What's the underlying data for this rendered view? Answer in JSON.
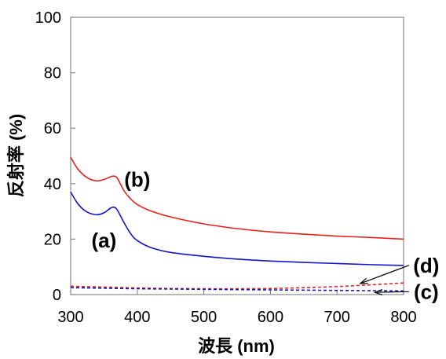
{
  "chart_data": {
    "type": "line",
    "xlabel": "波長 (nm)",
    "ylabel": "反射率 (%)",
    "xlim": [
      300,
      800
    ],
    "ylim": [
      0,
      100
    ],
    "x_ticks": [
      300,
      400,
      500,
      600,
      700,
      800
    ],
    "y_ticks": [
      0,
      20,
      40,
      60,
      80,
      100
    ],
    "grid": false,
    "legend": "none",
    "series": [
      {
        "name": "(b)",
        "color": "#e8211b",
        "style": "solid",
        "x": [
          300,
          310,
          320,
          330,
          340,
          350,
          360,
          365,
          370,
          380,
          390,
          400,
          420,
          450,
          500,
          550,
          600,
          650,
          700,
          750,
          800
        ],
        "y": [
          49.5,
          45.5,
          43.0,
          41.5,
          41.0,
          41.5,
          42.5,
          42.7,
          42.0,
          37.5,
          34.5,
          32.5,
          30.2,
          28.0,
          25.5,
          23.8,
          22.6,
          21.8,
          21.1,
          20.6,
          20.0
        ]
      },
      {
        "name": "(a)",
        "color": "#1515cc",
        "style": "solid",
        "x": [
          300,
          310,
          320,
          330,
          340,
          350,
          360,
          365,
          370,
          380,
          390,
          400,
          420,
          450,
          500,
          550,
          600,
          650,
          700,
          750,
          800
        ],
        "y": [
          37.0,
          33.0,
          30.5,
          29.2,
          28.8,
          29.5,
          31.2,
          31.5,
          30.5,
          26.0,
          22.0,
          19.5,
          17.0,
          15.2,
          13.8,
          12.8,
          12.1,
          11.6,
          11.2,
          10.8,
          10.5
        ]
      },
      {
        "name": "(d)",
        "color": "#e8211b",
        "style": "dashed",
        "x": [
          300,
          350,
          400,
          450,
          500,
          550,
          600,
          650,
          700,
          750,
          800
        ],
        "y": [
          3.0,
          2.7,
          2.4,
          2.2,
          2.1,
          2.1,
          2.2,
          2.5,
          2.9,
          3.5,
          4.2
        ]
      },
      {
        "name": "(c)",
        "color": "#1515cc",
        "style": "dashed",
        "x": [
          300,
          350,
          400,
          450,
          500,
          550,
          600,
          650,
          700,
          750,
          800
        ],
        "y": [
          2.5,
          2.3,
          2.1,
          2.0,
          1.9,
          1.8,
          1.7,
          1.6,
          1.5,
          1.4,
          1.3
        ]
      }
    ],
    "annotations": [
      {
        "id": "b",
        "text": "(b)",
        "x": 400,
        "y": 39,
        "anchor": "middle"
      },
      {
        "id": "a",
        "text": "(a)",
        "x": 350,
        "y": 17,
        "anchor": "middle"
      },
      {
        "id": "d",
        "text": "(d)",
        "x": 834,
        "y": 8,
        "anchor": "middle",
        "arrow_to": [
          735,
          4.0
        ]
      },
      {
        "id": "c",
        "text": "(c)",
        "x": 834,
        "y": -1.5,
        "anchor": "middle",
        "arrow_to": [
          757,
          0.8
        ]
      }
    ]
  }
}
